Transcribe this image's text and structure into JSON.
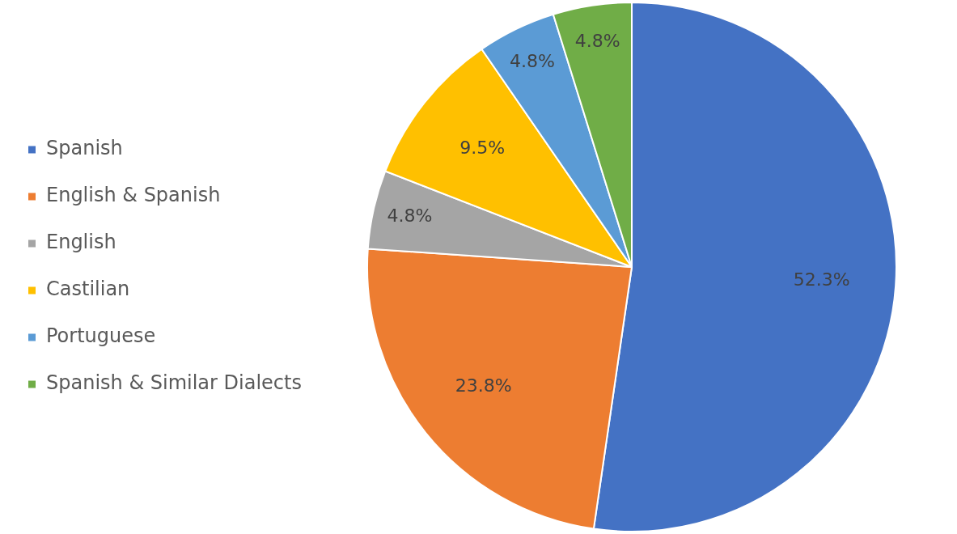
{
  "chart_data": {
    "type": "pie",
    "categories": [
      "Spanish",
      "English & Spanish",
      "English",
      "Castilian",
      "Portuguese",
      "Spanish & Similar Dialects"
    ],
    "values": [
      52.3,
      23.8,
      4.8,
      9.5,
      4.8,
      4.8
    ],
    "colors": [
      "#4472c4",
      "#ed7d31",
      "#a5a5a5",
      "#ffc000",
      "#5b9bd5",
      "#70ad47"
    ],
    "value_labels": [
      "52.3%",
      "23.8%",
      "4.8%",
      "9.5%",
      "4.8%",
      "4.8%"
    ],
    "legend": "left"
  }
}
